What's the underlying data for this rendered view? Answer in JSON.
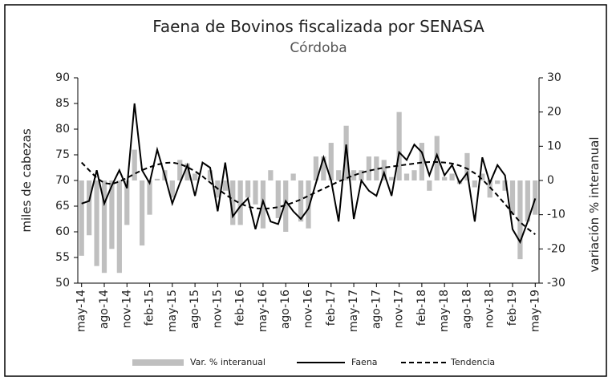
{
  "chart_data": {
    "type": "bar-line",
    "title": "Faena de Bovinos fiscalizada por SENASA",
    "subtitle": "Córdoba",
    "ylabel": "miles de cabezas",
    "y2label": "variación % interanual",
    "categories": [
      "may-14",
      null,
      null,
      "ago-14",
      null,
      null,
      "nov-14",
      null,
      null,
      "feb-15",
      null,
      null,
      "may-15",
      null,
      null,
      "ago-15",
      null,
      null,
      "nov-15",
      null,
      null,
      "feb-16",
      null,
      null,
      "may-16",
      null,
      null,
      "ago-16",
      null,
      null,
      "nov-16",
      null,
      null,
      "feb-17",
      null,
      null,
      "may-17",
      null,
      null,
      "ago-17",
      null,
      null,
      "nov-17",
      null,
      null,
      "feb-18",
      null,
      null,
      "may-18",
      null,
      null,
      "ago-18",
      null,
      null,
      "nov-18",
      null,
      null,
      "feb-19",
      null,
      null,
      "may-19"
    ],
    "ylim": [
      50,
      90
    ],
    "yticks": [
      50,
      55,
      60,
      65,
      70,
      75,
      80,
      85,
      90
    ],
    "y2lim": [
      -30,
      30
    ],
    "y2ticks": [
      -30,
      -20,
      -10,
      0,
      10,
      20,
      30
    ],
    "series": [
      {
        "name": "Var. % interanual",
        "type": "bar",
        "axis": "y2",
        "color": "#bfbfbf",
        "values": [
          -22,
          -16,
          -25,
          -27,
          -20,
          -27,
          -13,
          9,
          -19,
          -10,
          0.5,
          3,
          -5,
          6,
          5,
          2,
          0,
          3,
          -5,
          -3,
          -13,
          -13,
          -5,
          -7,
          -14,
          3,
          -11,
          -15,
          2,
          -12,
          -14,
          7,
          7,
          11,
          3,
          16,
          3,
          3,
          7,
          7,
          6,
          1,
          20,
          2,
          3,
          11,
          -3,
          13,
          1,
          2,
          -1,
          8,
          -2,
          2,
          -5,
          -1,
          -3,
          -10,
          -23,
          -12,
          -10
        ]
      },
      {
        "name": "Faena",
        "type": "line",
        "color": "#000000",
        "dash": false,
        "values": [
          65.5,
          66,
          72,
          65.5,
          69,
          72,
          68.5,
          85,
          72,
          69.5,
          76,
          71,
          65.5,
          69.5,
          73,
          67,
          73.5,
          72.5,
          64,
          73.5,
          63,
          65,
          66.5,
          60.5,
          66,
          62,
          61.5,
          66,
          64,
          62.5,
          64.5,
          69.5,
          74.5,
          70,
          62,
          77,
          62.5,
          70,
          68,
          67,
          71.5,
          67,
          75.5,
          74,
          77,
          75.5,
          71,
          75,
          71,
          73,
          69.5,
          71.5,
          62,
          74.5,
          69.5,
          73,
          71,
          60.5,
          58,
          62,
          66.5
        ]
      },
      {
        "name": "Tendencia",
        "type": "line",
        "color": "#000000",
        "dash": true,
        "values": [
          73.5,
          72,
          70.5,
          69.5,
          69.3,
          69.8,
          70.5,
          71.3,
          72,
          72.6,
          73.1,
          73.4,
          73.5,
          73.2,
          72.6,
          71.8,
          70.8,
          69.6,
          68.4,
          67.3,
          66.3,
          65.5,
          64.9,
          64.6,
          64.5,
          64.6,
          64.8,
          65.2,
          65.7,
          66.3,
          67,
          67.7,
          68.4,
          69.1,
          69.8,
          70.4,
          71,
          71.5,
          71.9,
          72.2,
          72.5,
          72.7,
          72.9,
          73.1,
          73.3,
          73.5,
          73.6,
          73.6,
          73.5,
          73.3,
          72.9,
          72.3,
          71.4,
          70.2,
          68.7,
          67.1,
          65.4,
          63.6,
          61.9,
          60.6,
          59.5
        ]
      }
    ]
  }
}
